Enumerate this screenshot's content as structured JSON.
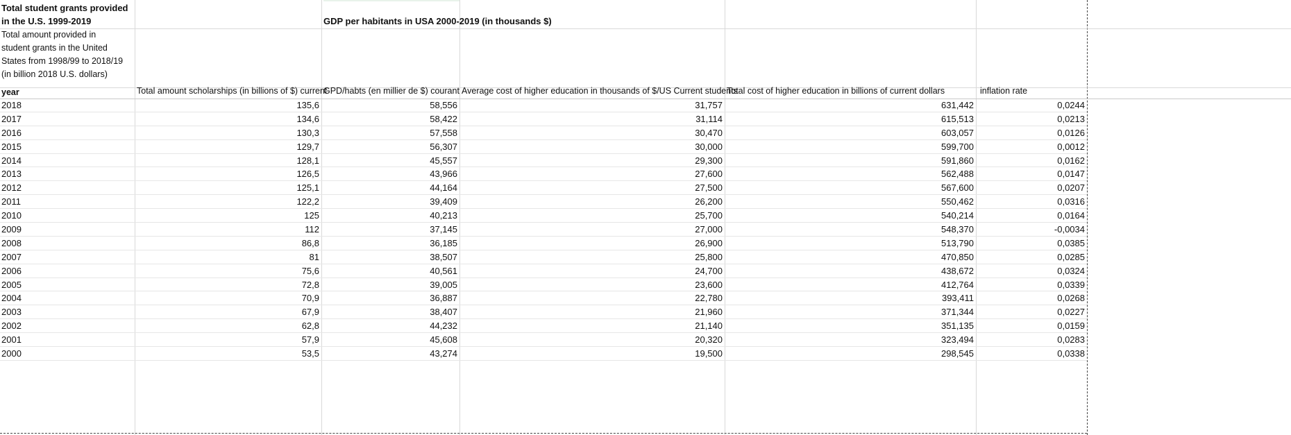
{
  "header": {
    "title_main": "Total student grants provided in the U.S. 1999-2019",
    "title_sub": "Total amount provided in student grants in the United States from 1998/99 to 2018/19 (in billion 2018 U.S. dollars)",
    "gdp_title": "GDP per habitants in USA 2000-2019 (in thousands $)"
  },
  "columns": {
    "year": "year",
    "col1": "Total amount scholarships (in billions of $) current",
    "col2": "GPD/habts (en millier de $) courant",
    "col3": "Average cost of higher education in thousands of $/US Current students",
    "col4": "Total cost of higher education in billions of current dollars",
    "col5": "inflation rate"
  },
  "rows": [
    {
      "year": "2018",
      "v1": "135,6",
      "v2": "58,556",
      "v3": "31,757",
      "v4": "631,442",
      "v5": "0,0244"
    },
    {
      "year": "2017",
      "v1": "134,6",
      "v2": "58,422",
      "v3": "31,114",
      "v4": "615,513",
      "v5": "0,0213"
    },
    {
      "year": "2016",
      "v1": "130,3",
      "v2": "57,558",
      "v3": "30,470",
      "v4": "603,057",
      "v5": "0,0126"
    },
    {
      "year": "2015",
      "v1": "129,7",
      "v2": "56,307",
      "v3": "30,000",
      "v4": "599,700",
      "v5": "0,0012"
    },
    {
      "year": "2014",
      "v1": "128,1",
      "v2": "45,557",
      "v3": "29,300",
      "v4": "591,860",
      "v5": "0,0162"
    },
    {
      "year": "2013",
      "v1": "126,5",
      "v2": "43,966",
      "v3": "27,600",
      "v4": "562,488",
      "v5": "0,0147"
    },
    {
      "year": "2012",
      "v1": "125,1",
      "v2": "44,164",
      "v3": "27,500",
      "v4": "567,600",
      "v5": "0,0207"
    },
    {
      "year": "2011",
      "v1": "122,2",
      "v2": "39,409",
      "v3": "26,200",
      "v4": "550,462",
      "v5": "0,0316"
    },
    {
      "year": "2010",
      "v1": "125",
      "v2": "40,213",
      "v3": "25,700",
      "v4": "540,214",
      "v5": "0,0164"
    },
    {
      "year": "2009",
      "v1": "112",
      "v2": "37,145",
      "v3": "27,000",
      "v4": "548,370",
      "v5": "-0,0034"
    },
    {
      "year": "2008",
      "v1": "86,8",
      "v2": "36,185",
      "v3": "26,900",
      "v4": "513,790",
      "v5": "0,0385"
    },
    {
      "year": "2007",
      "v1": "81",
      "v2": "38,507",
      "v3": "25,800",
      "v4": "470,850",
      "v5": "0,0285"
    },
    {
      "year": "2006",
      "v1": "75,6",
      "v2": "40,561",
      "v3": "24,700",
      "v4": "438,672",
      "v5": "0,0324"
    },
    {
      "year": "2005",
      "v1": "72,8",
      "v2": "39,005",
      "v3": "23,600",
      "v4": "412,764",
      "v5": "0,0339"
    },
    {
      "year": "2004",
      "v1": "70,9",
      "v2": "36,887",
      "v3": "22,780",
      "v4": "393,411",
      "v5": "0,0268"
    },
    {
      "year": "2003",
      "v1": "67,9",
      "v2": "38,407",
      "v3": "21,960",
      "v4": "371,344",
      "v5": "0,0227"
    },
    {
      "year": "2002",
      "v1": "62,8",
      "v2": "44,232",
      "v3": "21,140",
      "v4": "351,135",
      "v5": "0,0159"
    },
    {
      "year": "2001",
      "v1": "57,9",
      "v2": "45,608",
      "v3": "20,320",
      "v4": "323,494",
      "v5": "0,0283"
    },
    {
      "year": "2000",
      "v1": "53,5",
      "v2": "43,274",
      "v3": "19,500",
      "v4": "298,545",
      "v5": "0,0338"
    }
  ]
}
